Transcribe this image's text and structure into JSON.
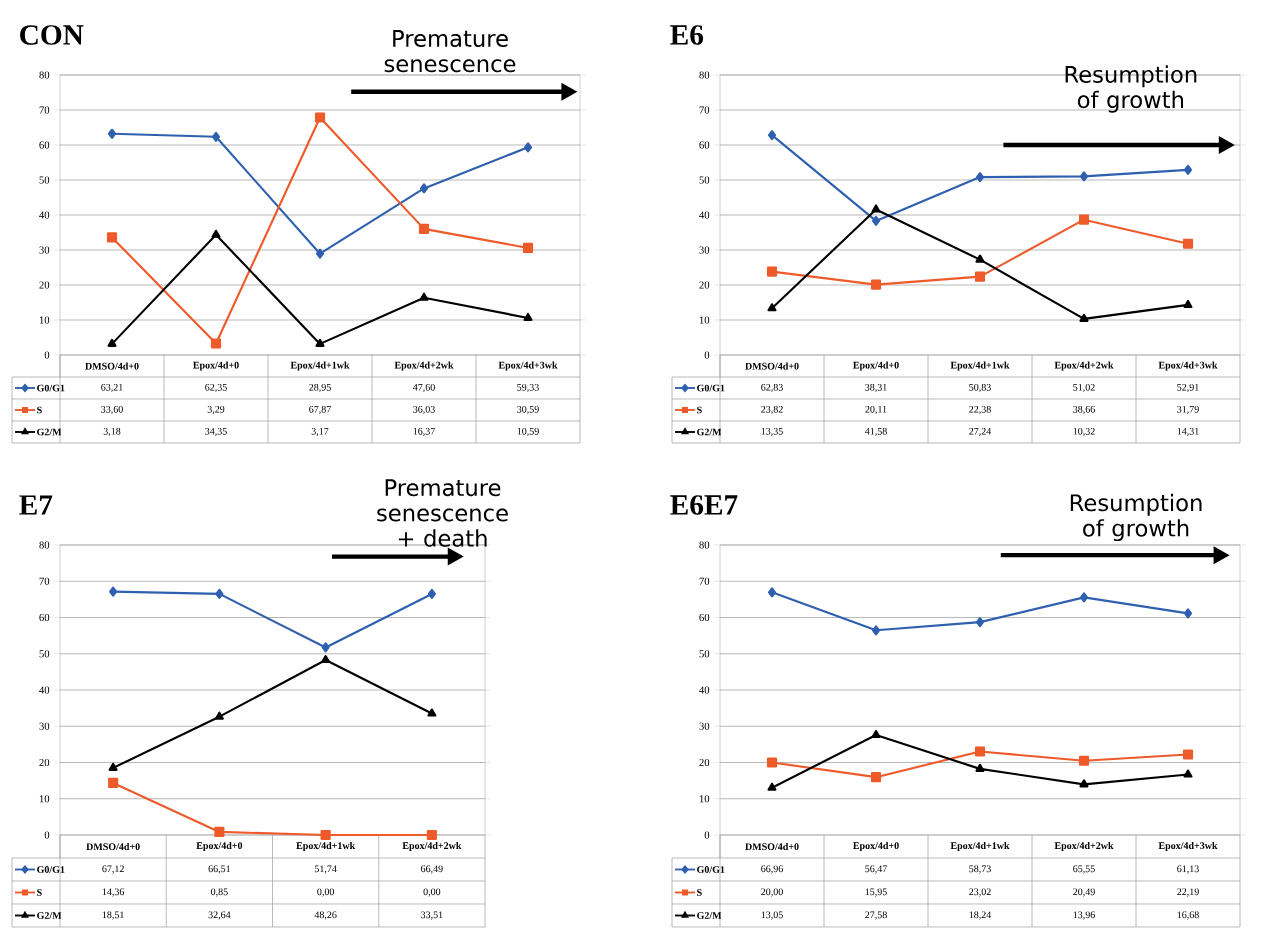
{
  "chart_data": [
    {
      "type": "line",
      "title": "CON",
      "categories": [
        "DMSO/4d+0",
        "Epox/4d+0",
        "Epox/4d+1wk",
        "Epox/4d+2wk",
        "Epox/4d+3wk"
      ],
      "ylim": [
        0,
        80
      ],
      "yticks": [
        0,
        10,
        20,
        30,
        40,
        50,
        60,
        70,
        80
      ],
      "grid": "y",
      "legend": "bottom left",
      "annotations": [
        "Premature senescence"
      ],
      "series": [
        {
          "name": "G0/G1",
          "color": "#2f5faf",
          "marker": "diamond",
          "values": [
            63.21,
            62.35,
            28.95,
            47.6,
            59.33
          ],
          "value_labels": [
            "63,21",
            "62,35",
            "28,95",
            "47,60",
            "59,33"
          ]
        },
        {
          "name": "S",
          "color": "#ee5a2a",
          "marker": "square",
          "values": [
            33.6,
            3.29,
            67.87,
            36.03,
            30.59
          ],
          "value_labels": [
            "33,60",
            "3,29",
            "67,87",
            "36,03",
            "30,59"
          ]
        },
        {
          "name": "G2/M",
          "color": "#000000",
          "marker": "triangle",
          "values": [
            3.18,
            34.35,
            3.17,
            16.37,
            10.59
          ],
          "value_labels": [
            "3,18",
            "34,35",
            "3,17",
            "16,37",
            "10,59"
          ]
        }
      ]
    },
    {
      "type": "line",
      "title": "E6",
      "categories": [
        "DMSO/4d+0",
        "Epox/4d+0",
        "Epox/4d+1wk",
        "Epox/4d+2wk",
        "Epox/4d+3wk"
      ],
      "ylim": [
        0,
        80
      ],
      "yticks": [
        0,
        10,
        20,
        30,
        40,
        50,
        60,
        70,
        80
      ],
      "grid": "y",
      "legend": "bottom left",
      "annotations": [
        "Resumption of growth"
      ],
      "series": [
        {
          "name": "G0/G1",
          "color": "#2f5faf",
          "marker": "diamond",
          "values": [
            62.83,
            38.31,
            50.83,
            51.02,
            52.91
          ],
          "value_labels": [
            "62,83",
            "38,31",
            "50,83",
            "51,02",
            "52,91"
          ]
        },
        {
          "name": "S",
          "color": "#ee5a2a",
          "marker": "square",
          "values": [
            23.82,
            20.11,
            22.38,
            38.66,
            31.79
          ],
          "value_labels": [
            "23,82",
            "20,11",
            "22,38",
            "38,66",
            "31,79"
          ]
        },
        {
          "name": "G2/M",
          "color": "#000000",
          "marker": "triangle",
          "values": [
            13.35,
            41.58,
            27.24,
            10.32,
            14.31
          ],
          "value_labels": [
            "13,35",
            "41,58",
            "27,24",
            "10,32",
            "14,31"
          ]
        }
      ]
    },
    {
      "type": "line",
      "title": "E7",
      "categories": [
        "DMSO/4d+0",
        "Epox/4d+0",
        "Epox/4d+1wk",
        "Epox/4d+2wk"
      ],
      "ylim": [
        0,
        80
      ],
      "yticks": [
        0,
        10,
        20,
        30,
        40,
        50,
        60,
        70,
        80
      ],
      "grid": "y",
      "legend": "bottom left",
      "annotations": [
        "Premature senescence + death"
      ],
      "series": [
        {
          "name": "G0/G1",
          "color": "#2f5faf",
          "marker": "diamond",
          "values": [
            67.12,
            66.51,
            51.74,
            66.49
          ],
          "value_labels": [
            "67,12",
            "66,51",
            "51,74",
            "66,49"
          ]
        },
        {
          "name": "S",
          "color": "#ee5a2a",
          "marker": "square",
          "values": [
            14.36,
            0.85,
            0.0,
            0.0
          ],
          "value_labels": [
            "14,36",
            "0,85",
            "0,00",
            "0,00"
          ]
        },
        {
          "name": "G2/M",
          "color": "#000000",
          "marker": "triangle",
          "values": [
            18.51,
            32.64,
            48.26,
            33.51
          ],
          "value_labels": [
            "18,51",
            "32,64",
            "48,26",
            "33,51"
          ]
        }
      ]
    },
    {
      "type": "line",
      "title": "E6E7",
      "categories": [
        "DMSO/4d+0",
        "Epox/4d+0",
        "Epox/4d+1wk",
        "Epox/4d+2wk",
        "Epox/4d+3wk"
      ],
      "ylim": [
        0,
        80
      ],
      "yticks": [
        0,
        10,
        20,
        30,
        40,
        50,
        60,
        70,
        80
      ],
      "grid": "y",
      "legend": "bottom left",
      "annotations": [
        "Resumption of growth"
      ],
      "series": [
        {
          "name": "G0/G1",
          "color": "#2f5faf",
          "marker": "diamond",
          "values": [
            66.96,
            56.47,
            58.73,
            65.55,
            61.13
          ],
          "value_labels": [
            "66,96",
            "56,47",
            "58,73",
            "65,55",
            "61,13"
          ]
        },
        {
          "name": "S",
          "color": "#ee5a2a",
          "marker": "square",
          "values": [
            20.0,
            15.95,
            23.02,
            20.49,
            22.19
          ],
          "value_labels": [
            "20,00",
            "15,95",
            "23,02",
            "20,49",
            "22,19"
          ]
        },
        {
          "name": "G2/M",
          "color": "#000000",
          "marker": "triangle",
          "values": [
            13.05,
            27.58,
            18.24,
            13.96,
            16.68
          ],
          "value_labels": [
            "13,05",
            "27,58",
            "18,24",
            "13,96",
            "16,68"
          ]
        }
      ]
    }
  ]
}
